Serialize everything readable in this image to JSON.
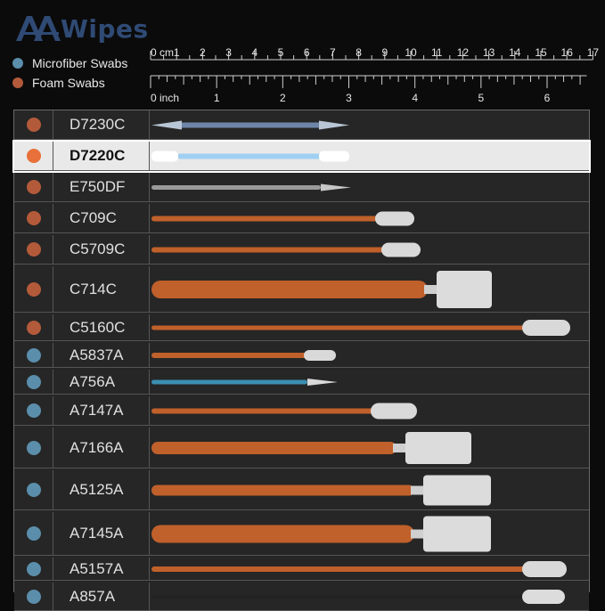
{
  "brand": {
    "name": "Wipes"
  },
  "legend": [
    {
      "label": "Microfiber Swabs",
      "color": "#5b8eab"
    },
    {
      "label": "Foam Swabs",
      "color": "#b35a3a"
    }
  ],
  "ruler": {
    "cm_label": "0 cm",
    "cm_ticks": [
      "1",
      "2",
      "3",
      "4",
      "5",
      "6",
      "7",
      "8",
      "9",
      "10",
      "11",
      "12",
      "13",
      "14",
      "15",
      "16",
      "17"
    ],
    "inch_label": "0 inch",
    "inch_ticks": [
      "1",
      "2",
      "3",
      "4",
      "5",
      "6"
    ]
  },
  "colors": {
    "foam": "#b35a3a",
    "microfiber": "#5b8eab",
    "selected_dot": "#e8703a"
  },
  "swabs": [
    {
      "code": "D7230C",
      "type": "foam",
      "selected": false,
      "icon": "double-tip-microfiber-swab"
    },
    {
      "code": "D7220C",
      "type": "foam",
      "selected": true,
      "icon": "double-tip-foam-swab"
    },
    {
      "code": "E750DF",
      "type": "foam",
      "selected": false,
      "icon": "pointed-foam-swab"
    },
    {
      "code": "C709C",
      "type": "foam",
      "selected": false,
      "icon": "small-round-foam-swab"
    },
    {
      "code": "C5709C",
      "type": "foam",
      "selected": false,
      "icon": "small-round-foam-swab"
    },
    {
      "code": "C714C",
      "type": "foam",
      "selected": false,
      "icon": "large-square-foam-swab"
    },
    {
      "code": "C5160C",
      "type": "foam",
      "selected": false,
      "icon": "long-foam-swab"
    },
    {
      "code": "A5837A",
      "type": "microfiber",
      "selected": false,
      "icon": "small-microfiber-swab"
    },
    {
      "code": "A756A",
      "type": "microfiber",
      "selected": false,
      "icon": "pointed-microfiber-swab"
    },
    {
      "code": "A7147A",
      "type": "microfiber",
      "selected": false,
      "icon": "small-round-microfiber-swab"
    },
    {
      "code": "A7166A",
      "type": "microfiber",
      "selected": false,
      "icon": "large-square-microfiber-swab"
    },
    {
      "code": "A5125A",
      "type": "microfiber",
      "selected": false,
      "icon": "large-square-microfiber-swab"
    },
    {
      "code": "A7145A",
      "type": "microfiber",
      "selected": false,
      "icon": "large-square-microfiber-swab"
    },
    {
      "code": "A5157A",
      "type": "microfiber",
      "selected": false,
      "icon": "long-microfiber-swab"
    },
    {
      "code": "A857A",
      "type": "microfiber",
      "selected": false,
      "icon": "black-handle-microfiber-swab"
    }
  ]
}
